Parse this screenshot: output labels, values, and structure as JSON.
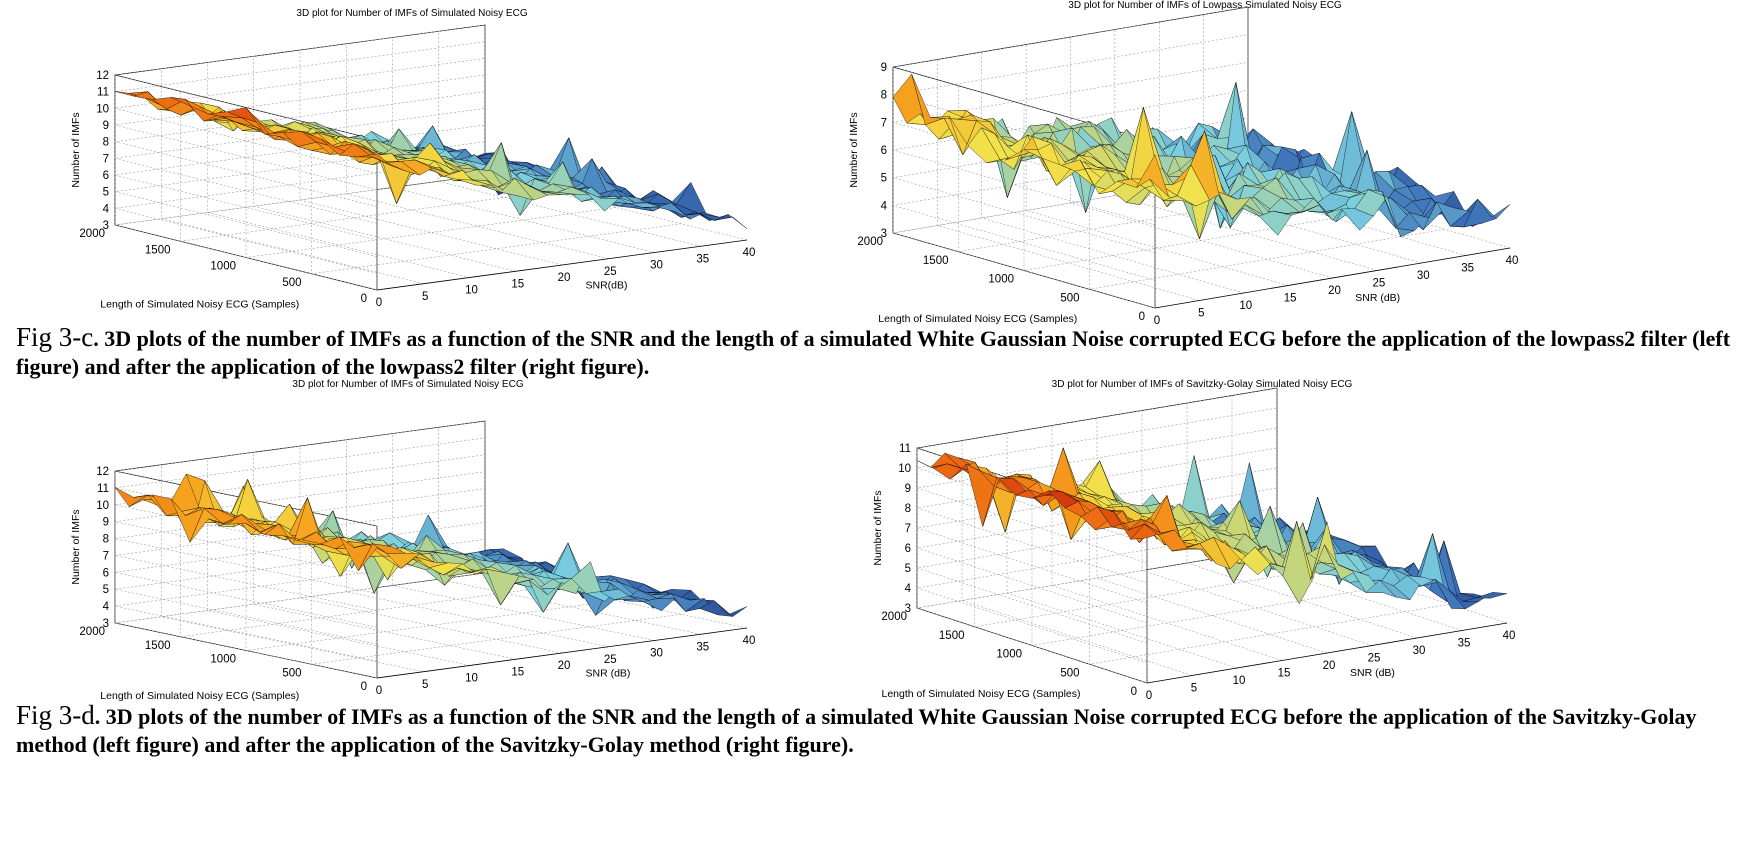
{
  "figures": [
    {
      "panel": "c-left",
      "title": "3D plot for Number of IMFs of Simulated Noisy ECG",
      "zlabel": "Number of IMFs",
      "ylabel": "Length of Simulated Noisy ECG (Samples)",
      "xlabel": "SNR(dB)",
      "zticks": [
        "3",
        "4",
        "5",
        "6",
        "7",
        "8",
        "9",
        "10",
        "11",
        "12"
      ],
      "yticks": [
        "2000",
        "1500",
        "1000",
        "500",
        "0"
      ],
      "xticks": [
        "0",
        "5",
        "10",
        "15",
        "20",
        "25",
        "30",
        "35",
        "40"
      ]
    },
    {
      "panel": "c-right",
      "title": "3D plot for Number of IMFs of Lowpass Simulated Noisy ECG",
      "zlabel": "Number of IMFs",
      "ylabel": "Length of Simulated Noisy ECG (Samples)",
      "xlabel": "SNR (dB)",
      "zticks": [
        "3",
        "4",
        "5",
        "6",
        "7",
        "8",
        "9"
      ],
      "yticks": [
        "2000",
        "1500",
        "1000",
        "500",
        "0"
      ],
      "xticks": [
        "0",
        "5",
        "10",
        "15",
        "20",
        "25",
        "30",
        "35",
        "40"
      ]
    },
    {
      "panel": "d-left",
      "title": "3D plot for Number of IMFs of Simulated Noisy ECG",
      "zlabel": "Number of IMFs",
      "ylabel": "Length of Simulated Noisy ECG (Samples)",
      "xlabel": "SNR (dB)",
      "zticks": [
        "3",
        "4",
        "5",
        "6",
        "7",
        "8",
        "9",
        "10",
        "11",
        "12"
      ],
      "yticks": [
        "2000",
        "1500",
        "1000",
        "500",
        "0"
      ],
      "xticks": [
        "0",
        "5",
        "10",
        "15",
        "20",
        "25",
        "30",
        "35",
        "40"
      ]
    },
    {
      "panel": "d-right",
      "title": "3D plot for Number of IMFs of Savitzky-Golay Simulated Noisy ECG",
      "zlabel": "Number of IMFs",
      "ylabel": "Length of Simulated Noisy ECG (Samples)",
      "xlabel": "SNR (dB)",
      "zticks": [
        "3",
        "4",
        "5",
        "6",
        "7",
        "8",
        "9",
        "10",
        "11"
      ],
      "yticks": [
        "2000",
        "1500",
        "1000",
        "500",
        "0"
      ],
      "xticks": [
        "0",
        "5",
        "10",
        "15",
        "20",
        "25",
        "30",
        "35",
        "40"
      ]
    }
  ],
  "captions": {
    "c": {
      "label": "Fig 3-c",
      "text": ". 3D plots of the number of IMFs as a function of the SNR and the length of a simulated White Gaussian Noise corrupted ECG before the application of the lowpass2 filter (left figure) and after the application of the lowpass2 filter (right figure)."
    },
    "d": {
      "label": "Fig 3-d",
      "text": ". 3D plots of the number of IMFs as a function of the SNR and the length of a simulated White Gaussian Noise corrupted ECG before the application of the Savitzky-Golay method (left figure) and after the application of the Savitzky-Golay method (right figure)."
    }
  },
  "chart_data": [
    {
      "type": "surface",
      "title": "3D plot for Number of IMFs of Simulated Noisy ECG",
      "xlabel": "SNR(dB)",
      "ylabel": "Length of Simulated Noisy ECG (Samples)",
      "zlabel": "Number of IMFs",
      "xlim": [
        0,
        40
      ],
      "ylim": [
        0,
        2000
      ],
      "zlim": [
        3,
        12
      ],
      "trend": "decreasing with SNR",
      "z_at_low_snr": 11,
      "z_at_high_snr": 4
    },
    {
      "type": "surface",
      "title": "3D plot for Number of IMFs of Lowpass Simulated Noisy ECG",
      "xlabel": "SNR (dB)",
      "ylabel": "Length of Simulated Noisy ECG (Samples)",
      "zlabel": "Number of IMFs",
      "xlim": [
        0,
        40
      ],
      "ylim": [
        0,
        2000
      ],
      "zlim": [
        3,
        9
      ],
      "trend": "decreasing with SNR",
      "z_at_low_snr": 7,
      "z_at_high_snr": 4
    },
    {
      "type": "surface",
      "title": "3D plot for Number of IMFs of Simulated Noisy ECG",
      "xlabel": "SNR (dB)",
      "ylabel": "Length of Simulated Noisy ECG (Samples)",
      "zlabel": "Number of IMFs",
      "xlim": [
        0,
        40
      ],
      "ylim": [
        0,
        2000
      ],
      "zlim": [
        3,
        12
      ],
      "trend": "decreasing with SNR",
      "z_at_low_snr": 10.5,
      "z_at_high_snr": 4
    },
    {
      "type": "surface",
      "title": "3D plot for Number of IMFs of Savitzky-Golay Simulated Noisy ECG",
      "xlabel": "SNR (dB)",
      "ylabel": "Length of Simulated Noisy ECG (Samples)",
      "zlabel": "Number of IMFs",
      "xlim": [
        0,
        40
      ],
      "ylim": [
        0,
        2000
      ],
      "zlim": [
        3,
        11
      ],
      "trend": "decreasing with SNR",
      "z_at_low_snr": 10.5,
      "z_at_high_snr": 4
    }
  ]
}
